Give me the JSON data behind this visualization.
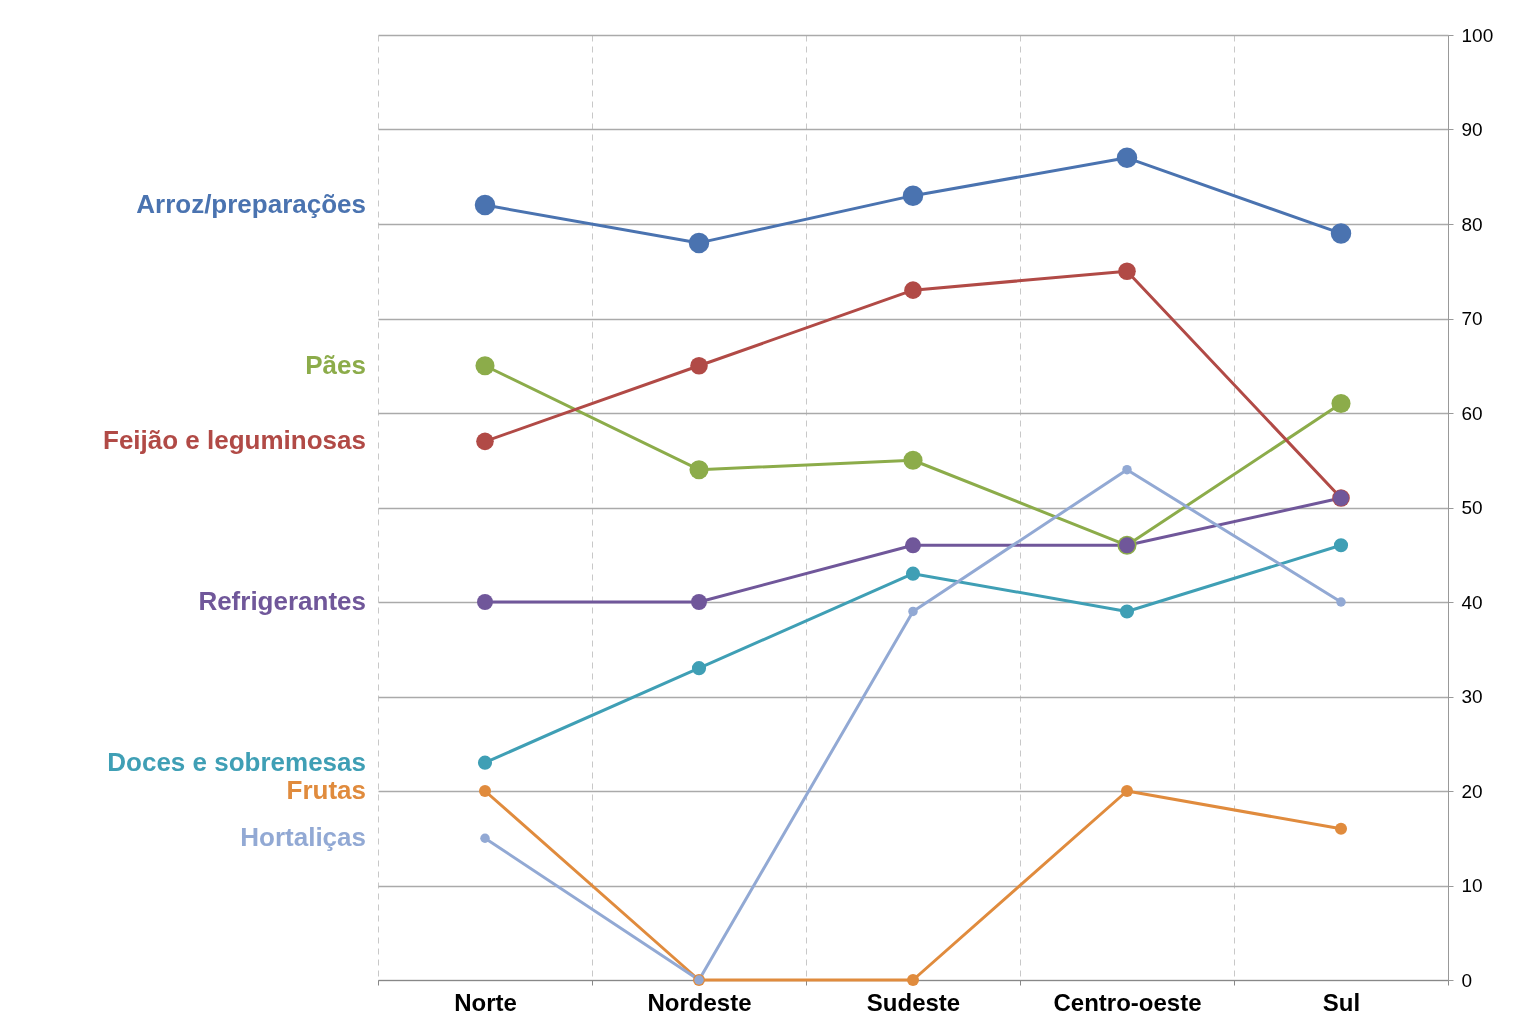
{
  "chart_data": {
    "type": "line",
    "categories": [
      "Norte",
      "Nordeste",
      "Sudeste",
      "Centro-oeste",
      "Sul"
    ],
    "series": [
      {
        "name": "Arroz/preparações",
        "color": "#4a73b0",
        "values": [
          82,
          78,
          83,
          87,
          79
        ]
      },
      {
        "name": "Pães",
        "color": "#8cac4a",
        "values": [
          65,
          54,
          55,
          46,
          61
        ]
      },
      {
        "name": "Feijão e leguminosas",
        "color": "#b14a46",
        "values": [
          57,
          65,
          73,
          75,
          51
        ]
      },
      {
        "name": "Refrigerantes",
        "color": "#70579a",
        "values": [
          40,
          40,
          46,
          46,
          51
        ]
      },
      {
        "name": "Doces e sobremesas",
        "color": "#3f9fb5",
        "values": [
          23,
          33,
          43,
          39,
          46
        ]
      },
      {
        "name": "Frutas",
        "color": "#e08b3d",
        "values": [
          20,
          0,
          0,
          20,
          16
        ]
      },
      {
        "name": "Hortaliças",
        "color": "#92a9d4",
        "values": [
          15,
          0,
          39,
          54,
          40
        ]
      }
    ],
    "ylim": [
      0,
      100
    ],
    "yticks": [
      0,
      10,
      20,
      30,
      40,
      50,
      60,
      70,
      80,
      90,
      100
    ],
    "grid": true,
    "legend": false,
    "marker": "circle",
    "line_style": "solid"
  }
}
